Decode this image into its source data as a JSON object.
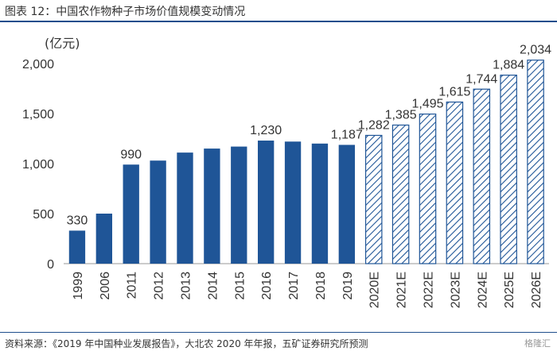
{
  "figure": {
    "title": "图表 12：中国农作物种子市场价值规模变动情况",
    "source": "资料来源：《2019 年中国种业发展报告》，大北农 2020 年年报，五矿证券研究所预测",
    "watermark": "格隆汇"
  },
  "colors": {
    "actual": "#1f5597",
    "forecast_stroke": "#1f5597",
    "rule": "#1f4e8c"
  },
  "chart_data": {
    "type": "bar",
    "unit_label": "(亿元)",
    "categories": [
      "1999",
      "2006",
      "2011",
      "2012",
      "2013",
      "2014",
      "2015",
      "2016",
      "2017",
      "2018",
      "2019",
      "2020E",
      "2021E",
      "2022E",
      "2023E",
      "2024E",
      "2025E",
      "2026E"
    ],
    "values": [
      330,
      500,
      990,
      1030,
      1110,
      1150,
      1170,
      1230,
      1220,
      1200,
      1187,
      1282,
      1385,
      1495,
      1615,
      1744,
      1884,
      2034
    ],
    "labels": [
      "330",
      "",
      "990",
      "",
      "",
      "",
      "",
      "1,230",
      "",
      "",
      "1,187",
      "1,282",
      "1,385",
      "1,495",
      "1,615",
      "1,744",
      "1,884",
      "2,034"
    ],
    "forecast": [
      false,
      false,
      false,
      false,
      false,
      false,
      false,
      false,
      false,
      false,
      false,
      true,
      true,
      true,
      true,
      true,
      true,
      true
    ],
    "ylim": [
      0,
      2000
    ],
    "yticks": [
      0,
      500,
      1000,
      1500,
      2000
    ],
    "ytick_labels": [
      "0",
      "500",
      "1,000",
      "1,500",
      "2,000"
    ],
    "legend": "none",
    "grid": false
  }
}
